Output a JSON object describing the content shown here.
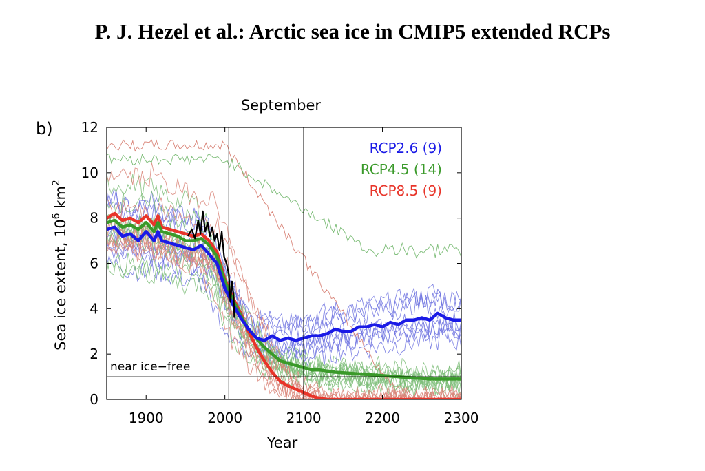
{
  "header": {
    "title": "P. J. Hezel et al.: Arctic sea ice in CMIP5 extended RCPs"
  },
  "panel": {
    "label": "b)"
  },
  "colors": {
    "rcp26": "#1a1ae6",
    "rcp45": "#3a9a2a",
    "rcp85": "#e8352a",
    "observed": "#000000",
    "rcp26_thin": "#6f73e0",
    "rcp45_thin": "#7dbd78",
    "rcp85_thin": "#d98478"
  },
  "chart_data": {
    "type": "line",
    "title": "September",
    "xlabel": "Year",
    "ylabel_main": "Sea ice extent, 10",
    "ylabel_sup": "6",
    "ylabel_unit": " km",
    "ylabel_sup2": "2",
    "xlim": [
      1850,
      2300
    ],
    "ylim": [
      0,
      12
    ],
    "xticks": [
      1900,
      2000,
      2100,
      2200,
      2300
    ],
    "yticks": [
      0,
      2,
      4,
      6,
      8,
      10,
      12
    ],
    "vertical_lines": [
      2005,
      2100
    ],
    "threshold": {
      "value": 1,
      "label": "near ice−free"
    },
    "legend": [
      {
        "label": "RCP2.6 (9)",
        "color_key": "rcp26"
      },
      {
        "label": "RCP4.5 (14)",
        "color_key": "rcp45"
      },
      {
        "label": "RCP8.5 (9)",
        "color_key": "rcp85"
      }
    ],
    "legend_position": "top-right",
    "series": [
      {
        "name": "RCP2.6 (9)",
        "color_key": "rcp26",
        "points": [
          [
            1850,
            7.5
          ],
          [
            1860,
            7.6
          ],
          [
            1870,
            7.2
          ],
          [
            1880,
            7.3
          ],
          [
            1890,
            7.0
          ],
          [
            1900,
            7.4
          ],
          [
            1910,
            7.0
          ],
          [
            1915,
            7.4
          ],
          [
            1920,
            7.0
          ],
          [
            1930,
            6.9
          ],
          [
            1940,
            6.8
          ],
          [
            1950,
            6.7
          ],
          [
            1960,
            6.6
          ],
          [
            1970,
            6.8
          ],
          [
            1980,
            6.4
          ],
          [
            1990,
            6.0
          ],
          [
            2000,
            4.9
          ],
          [
            2010,
            4.2
          ],
          [
            2020,
            3.6
          ],
          [
            2030,
            3.1
          ],
          [
            2040,
            2.7
          ],
          [
            2050,
            2.6
          ],
          [
            2060,
            2.8
          ],
          [
            2070,
            2.6
          ],
          [
            2080,
            2.7
          ],
          [
            2090,
            2.6
          ],
          [
            2100,
            2.7
          ],
          [
            2110,
            2.8
          ],
          [
            2120,
            2.8
          ],
          [
            2130,
            2.9
          ],
          [
            2140,
            3.1
          ],
          [
            2150,
            3.0
          ],
          [
            2160,
            3.0
          ],
          [
            2170,
            3.2
          ],
          [
            2180,
            3.2
          ],
          [
            2190,
            3.3
          ],
          [
            2200,
            3.2
          ],
          [
            2210,
            3.4
          ],
          [
            2220,
            3.3
          ],
          [
            2230,
            3.5
          ],
          [
            2240,
            3.5
          ],
          [
            2250,
            3.6
          ],
          [
            2260,
            3.5
          ],
          [
            2270,
            3.8
          ],
          [
            2280,
            3.6
          ],
          [
            2290,
            3.5
          ],
          [
            2300,
            3.5
          ]
        ]
      },
      {
        "name": "RCP4.5 (14)",
        "color_key": "rcp45",
        "points": [
          [
            1850,
            7.8
          ],
          [
            1860,
            7.9
          ],
          [
            1870,
            7.6
          ],
          [
            1880,
            7.7
          ],
          [
            1890,
            7.5
          ],
          [
            1900,
            7.8
          ],
          [
            1910,
            7.4
          ],
          [
            1915,
            7.8
          ],
          [
            1920,
            7.4
          ],
          [
            1930,
            7.3
          ],
          [
            1940,
            7.2
          ],
          [
            1950,
            7.0
          ],
          [
            1960,
            7.0
          ],
          [
            1970,
            7.1
          ],
          [
            1980,
            6.8
          ],
          [
            1990,
            6.3
          ],
          [
            2000,
            5.2
          ],
          [
            2010,
            4.4
          ],
          [
            2020,
            3.7
          ],
          [
            2030,
            3.1
          ],
          [
            2040,
            2.7
          ],
          [
            2050,
            2.3
          ],
          [
            2060,
            2.0
          ],
          [
            2070,
            1.7
          ],
          [
            2080,
            1.6
          ],
          [
            2090,
            1.5
          ],
          [
            2100,
            1.4
          ],
          [
            2110,
            1.3
          ],
          [
            2120,
            1.3
          ],
          [
            2140,
            1.2
          ],
          [
            2160,
            1.15
          ],
          [
            2180,
            1.1
          ],
          [
            2200,
            1.05
          ],
          [
            2220,
            1.0
          ],
          [
            2240,
            0.95
          ],
          [
            2260,
            0.9
          ],
          [
            2280,
            0.9
          ],
          [
            2300,
            0.9
          ]
        ]
      },
      {
        "name": "RCP8.5 (9)",
        "color_key": "rcp85",
        "points": [
          [
            1850,
            8.0
          ],
          [
            1860,
            8.2
          ],
          [
            1870,
            7.9
          ],
          [
            1880,
            8.0
          ],
          [
            1890,
            7.8
          ],
          [
            1900,
            8.1
          ],
          [
            1910,
            7.7
          ],
          [
            1915,
            8.1
          ],
          [
            1920,
            7.6
          ],
          [
            1930,
            7.5
          ],
          [
            1940,
            7.4
          ],
          [
            1950,
            7.3
          ],
          [
            1960,
            7.2
          ],
          [
            1970,
            7.3
          ],
          [
            1980,
            7.0
          ],
          [
            1990,
            6.5
          ],
          [
            2000,
            5.3
          ],
          [
            2010,
            4.5
          ],
          [
            2020,
            3.8
          ],
          [
            2030,
            3.0
          ],
          [
            2040,
            2.3
          ],
          [
            2050,
            1.7
          ],
          [
            2060,
            1.2
          ],
          [
            2070,
            0.8
          ],
          [
            2080,
            0.6
          ],
          [
            2090,
            0.45
          ],
          [
            2100,
            0.3
          ],
          [
            2110,
            0.15
          ],
          [
            2120,
            0.05
          ],
          [
            2130,
            0.0
          ],
          [
            2200,
            0.0
          ],
          [
            2300,
            0.0
          ]
        ]
      },
      {
        "name": "",
        "color_key": "observed",
        "points": [
          [
            1953,
            7.2
          ],
          [
            1958,
            7.5
          ],
          [
            1962,
            7.1
          ],
          [
            1966,
            7.9
          ],
          [
            1969,
            7.3
          ],
          [
            1972,
            8.3
          ],
          [
            1975,
            7.4
          ],
          [
            1978,
            7.8
          ],
          [
            1981,
            7.2
          ],
          [
            1984,
            7.6
          ],
          [
            1987,
            7.0
          ],
          [
            1990,
            7.3
          ],
          [
            1993,
            6.6
          ],
          [
            1996,
            7.4
          ],
          [
            1999,
            6.3
          ],
          [
            2002,
            6.0
          ],
          [
            2005,
            5.5
          ],
          [
            2007,
            4.3
          ],
          [
            2009,
            5.2
          ],
          [
            2011,
            4.6
          ],
          [
            2012,
            3.6
          ]
        ]
      }
    ]
  }
}
